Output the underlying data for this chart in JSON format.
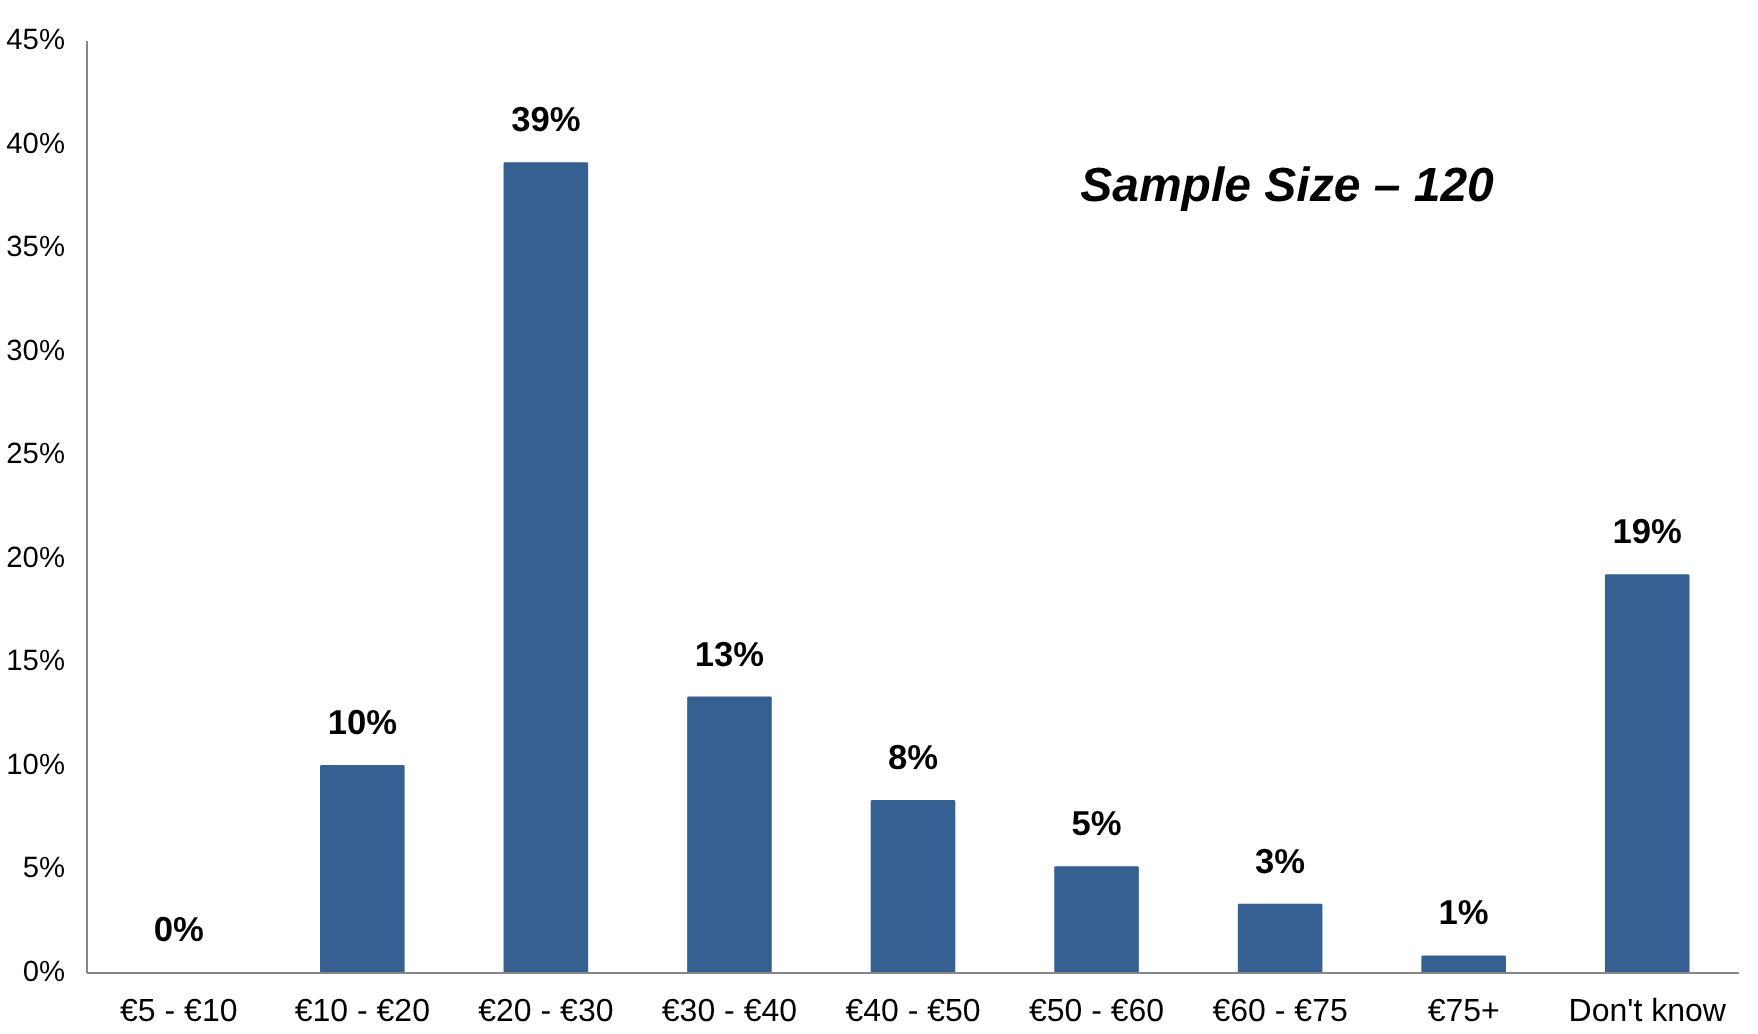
{
  "chart_data": {
    "type": "bar",
    "categories": [
      "€5 - €10",
      "€10 - €20",
      "€20 - €30",
      "€30 - €40",
      "€40 - €50",
      "€50 - €60",
      "€60 - €75",
      "€75+",
      "Don't know"
    ],
    "values": [
      0,
      10,
      39.1,
      13.3,
      8.3,
      5.1,
      3.3,
      0.8,
      19.2
    ],
    "value_labels": [
      "0%",
      "10%",
      "39%",
      "13%",
      "8%",
      "5%",
      "3%",
      "1%",
      "19%"
    ],
    "color": "#376092",
    "ylim": [
      0,
      45
    ],
    "yticks": [
      {
        "value": 0,
        "label": "0%"
      },
      {
        "value": 5,
        "label": "5%"
      },
      {
        "value": 10,
        "label": "10%"
      },
      {
        "value": 15,
        "label": "15%"
      },
      {
        "value": 20,
        "label": "20%"
      },
      {
        "value": 25,
        "label": "25%"
      },
      {
        "value": 30,
        "label": "30%"
      },
      {
        "value": 35,
        "label": "35%"
      },
      {
        "value": 40,
        "label": "40%"
      },
      {
        "value": 45,
        "label": "45%"
      }
    ],
    "annotations": [
      "Sample Size – 120"
    ],
    "grid": false
  }
}
